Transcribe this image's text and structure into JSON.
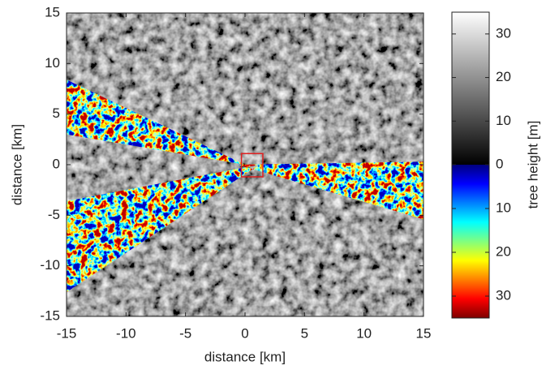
{
  "chart_data": {
    "type": "image",
    "xlabel": "distance [km]",
    "ylabel": "distance [km]",
    "xlim": [
      -15,
      15
    ],
    "ylim": [
      -15,
      15
    ],
    "xticks": [
      -15,
      -10,
      -5,
      0,
      5,
      10,
      15
    ],
    "yticks": [
      -15,
      -10,
      -5,
      0,
      5,
      10,
      15
    ],
    "highlight_box": {
      "x": [
        -0.3,
        1.5
      ],
      "y": [
        -1.2,
        1.1
      ],
      "color": "#e02020"
    },
    "colorbar": {
      "label": "tree height [m]",
      "gray": {
        "lim": [
          0,
          35
        ],
        "ticks": [
          0,
          10,
          20,
          30
        ]
      },
      "jet": {
        "lim": [
          0,
          35
        ],
        "ticks": [
          10,
          20,
          30
        ]
      }
    }
  }
}
